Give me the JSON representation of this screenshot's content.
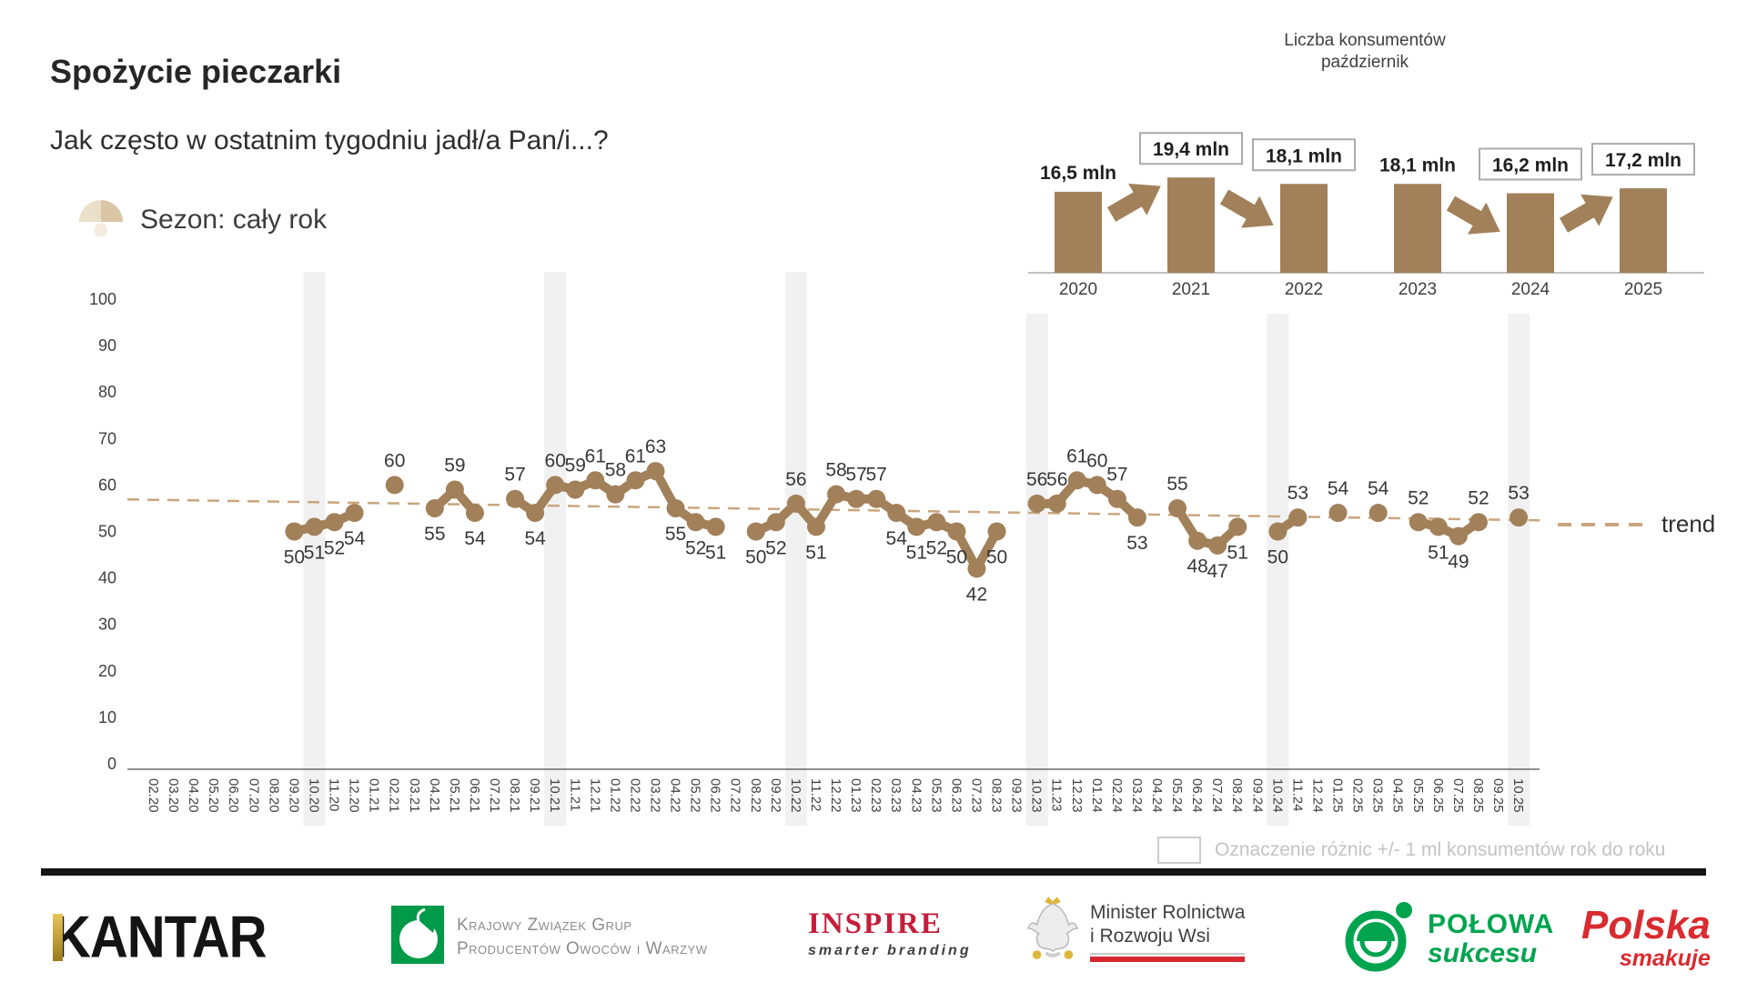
{
  "page": {
    "title": "Spożycie pieczarki",
    "subtitle": "Jak często w ostatnim tygodniu jadł/a Pan/i...?",
    "season_label": "Sezon: cały rok",
    "trend_label": "trend",
    "legend_note": "Oznaczenie różnic +/- 1 ml konsumentów rok do roku"
  },
  "colors": {
    "brown": "#A28059",
    "trend": "#C9A67E",
    "band": "#F1F1F1",
    "axis_text": "#3f3f3f",
    "data_label": "#383838",
    "box_border": "#ababab"
  },
  "chart_data": [
    {
      "type": "line",
      "title": "Spożycie pieczarki",
      "subtitle": "Jak często w ostatnim tygodniu jadł/a Pan/i...?",
      "ylim": [
        0,
        100
      ],
      "yticks": [
        0,
        10,
        20,
        30,
        40,
        50,
        60,
        70,
        80,
        90,
        100
      ],
      "grid": false,
      "x": [
        "02.20",
        "03.20",
        "04.20",
        "05.20",
        "06.20",
        "07.20",
        "08.20",
        "09.20",
        "10.20",
        "11.20",
        "12.20",
        "01.21",
        "02.21",
        "03.21",
        "04.21",
        "05.21",
        "06.21",
        "07.21",
        "08.21",
        "09.21",
        "10.21",
        "11.21",
        "12.21",
        "01.22",
        "02.22",
        "03.22",
        "04.22",
        "05.22",
        "06.22",
        "07.22",
        "08.22",
        "09.22",
        "10.22",
        "11.22",
        "12.22",
        "01.23",
        "02.23",
        "03.23",
        "04.23",
        "05.23",
        "06.23",
        "07.23",
        "08.23",
        "09.23",
        "10.23",
        "11.23",
        "12.23",
        "01.24",
        "02.24",
        "03.24",
        "04.24",
        "05.24",
        "06.24",
        "07.24",
        "08.24",
        "09.24",
        "10.24",
        "11.24",
        "12.24",
        "01.25",
        "02.25",
        "03.25",
        "04.25",
        "05.25",
        "06.25",
        "07.25",
        "08.25",
        "09.25",
        "10.25"
      ],
      "values": [
        null,
        null,
        null,
        null,
        null,
        null,
        null,
        50,
        51,
        52,
        54,
        null,
        60,
        null,
        55,
        59,
        54,
        null,
        57,
        54,
        60,
        59,
        61,
        58,
        61,
        63,
        55,
        52,
        51,
        null,
        50,
        52,
        56,
        51,
        58,
        57,
        57,
        54,
        51,
        52,
        50,
        42,
        50,
        null,
        56,
        56,
        61,
        60,
        57,
        53,
        null,
        55,
        48,
        47,
        51,
        null,
        50,
        53,
        null,
        54,
        null,
        54,
        null,
        52,
        51,
        49,
        52,
        null,
        53
      ],
      "label_pos": [
        null,
        null,
        null,
        null,
        null,
        null,
        null,
        "below",
        "below",
        "below",
        "below",
        null,
        "above",
        null,
        "below",
        "above",
        "below",
        null,
        "above",
        "below",
        "above",
        "above",
        "above",
        "above",
        "above",
        "above",
        "below",
        "below",
        "below",
        null,
        "below",
        "below",
        "above",
        "below",
        "above",
        "above",
        "above",
        "below",
        "below",
        "below",
        "below",
        "below",
        "below",
        null,
        "above",
        "above",
        "above",
        "above",
        "above",
        "below",
        null,
        "above",
        "below",
        "below",
        "below",
        null,
        "below",
        "above",
        null,
        "above",
        null,
        "above",
        null,
        "above",
        "below",
        "below",
        "above",
        null,
        "above"
      ],
      "highlight_columns": [
        "10.20",
        "10.21",
        "10.22",
        "10.23",
        "10.24",
        "10.25"
      ],
      "trend": {
        "start_value": 56.9,
        "end_value": 52.4,
        "label": "trend"
      }
    },
    {
      "type": "bar",
      "title_line1": "Liczba konsumentów",
      "title_line2": "październik",
      "categories": [
        "2020",
        "2021",
        "2022",
        "2023",
        "2024",
        "2025"
      ],
      "values": [
        16.5,
        19.4,
        18.1,
        18.1,
        16.2,
        17.2
      ],
      "labels": [
        "16,5 mln",
        "19,4 mln",
        "18,1 mln",
        "18,1 mln",
        "16,2 mln",
        "17,2 mln"
      ],
      "boxed": [
        false,
        true,
        true,
        false,
        true,
        true
      ],
      "arrows": [
        {
          "from": 0,
          "to": 1,
          "dir": "up"
        },
        {
          "from": 1,
          "to": 2,
          "dir": "down"
        },
        {
          "from": 3,
          "to": 4,
          "dir": "down"
        },
        {
          "from": 4,
          "to": 5,
          "dir": "up"
        }
      ]
    }
  ],
  "footer": {
    "kantar": {
      "name": "KANTAR"
    },
    "kzgpow": {
      "line1": "Krajowy Związek Grup",
      "line2": "Producentów Owoców i Warzyw"
    },
    "inspire": {
      "name": "INSPIRE",
      "tagline": "smarter branding"
    },
    "minister": {
      "line1": "Minister Rolnictwa",
      "line2": "i Rozwoju Wsi"
    },
    "polowa": {
      "line1": "POŁOWA",
      "line2": "sukcesu"
    },
    "polska": {
      "line1": "Polska",
      "line2": "smakuje"
    }
  }
}
